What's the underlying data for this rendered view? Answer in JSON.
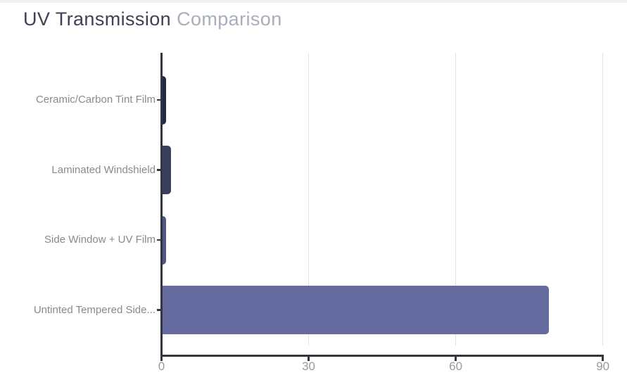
{
  "title": {
    "primary": "UV Transmission",
    "secondary": "Comparison",
    "primary_color": "#3e4254",
    "secondary_color": "#a9aebb"
  },
  "chart_data": {
    "type": "bar",
    "orientation": "horizontal",
    "title": "UV Transmission Comparison",
    "xlabel": "",
    "ylabel": "",
    "categories": [
      "Ceramic/Carbon Tint Film",
      "Laminated Windshield",
      "Side Window + UV Film",
      "Untinted Tempered Side..."
    ],
    "values": [
      1,
      2,
      1,
      79
    ],
    "bar_colors": [
      "#242a43",
      "#3a3f5e",
      "#515687",
      "#666b9f"
    ],
    "x_ticks": [
      "0",
      "30",
      "60",
      "90"
    ],
    "x_tick_values": [
      0,
      30,
      60,
      90
    ],
    "xlim": [
      0,
      90
    ],
    "grid": "vertical gridlines at x ticks",
    "legend": "none",
    "axis_color": "#33363f",
    "gridline_color": "#e2e2e2",
    "category_label_color": "#8a8a8a",
    "tick_label_color": "#9b9b9b",
    "background_color": "#ffffff"
  }
}
